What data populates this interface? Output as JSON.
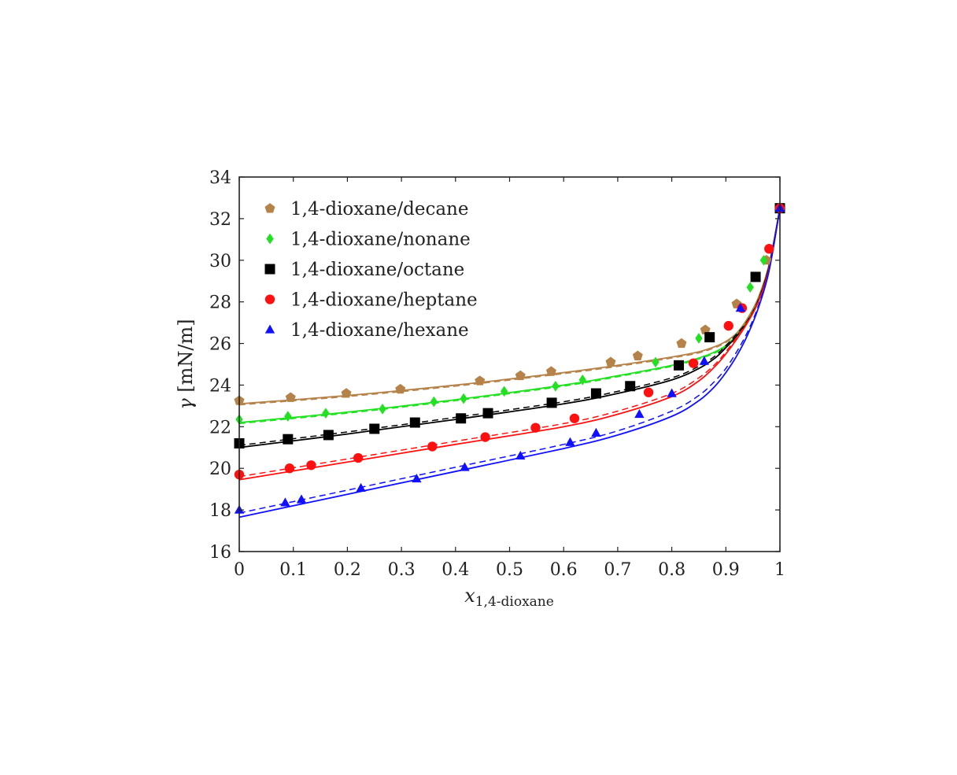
{
  "chart_data": {
    "type": "scatter",
    "title": "",
    "xlabel": {
      "base": "x",
      "sub": "1,4-dioxane"
    },
    "ylabel": {
      "base": "γ",
      "unit": " [mN/m]"
    },
    "xlim": [
      0,
      1
    ],
    "ylim": [
      16,
      34
    ],
    "xticks": [
      0,
      0.1,
      0.2,
      0.3,
      0.4,
      0.5,
      0.6,
      0.7,
      0.8,
      0.9,
      1
    ],
    "xtick_labels": [
      "0",
      "0.1",
      "0.2",
      "0.3",
      "0.4",
      "0.5",
      "0.6",
      "0.7",
      "0.8",
      "0.9",
      "1"
    ],
    "yticks": [
      16,
      18,
      20,
      22,
      24,
      26,
      28,
      30,
      32,
      34
    ],
    "ytick_labels": [
      "16",
      "18",
      "20",
      "22",
      "24",
      "26",
      "28",
      "30",
      "32",
      "34"
    ],
    "grid": false,
    "legend_position": "top-left",
    "series": [
      {
        "name": "1,4-dioxane/decane",
        "marker": "pentagon",
        "color": "#b5834a",
        "points": [
          [
            0,
            23.25
          ],
          [
            0.095,
            23.4
          ],
          [
            0.198,
            23.6
          ],
          [
            0.298,
            23.8
          ],
          [
            0.445,
            24.2
          ],
          [
            0.52,
            24.45
          ],
          [
            0.577,
            24.65
          ],
          [
            0.687,
            25.1
          ],
          [
            0.737,
            25.4
          ],
          [
            0.818,
            26.0
          ],
          [
            0.862,
            26.65
          ],
          [
            0.92,
            27.9
          ],
          [
            0.975,
            30.0
          ],
          [
            1.0,
            32.5
          ]
        ],
        "line_solid": [
          [
            0,
            23.1
          ],
          [
            0.2,
            23.5
          ],
          [
            0.4,
            24.0
          ],
          [
            0.6,
            24.6
          ],
          [
            0.7,
            24.95
          ],
          [
            0.8,
            25.35
          ],
          [
            0.85,
            25.6
          ],
          [
            0.88,
            25.85
          ],
          [
            0.9,
            26.1
          ],
          [
            0.92,
            26.5
          ],
          [
            0.94,
            27.2
          ],
          [
            0.96,
            28.2
          ],
          [
            0.98,
            29.8
          ],
          [
            1.0,
            32.5
          ]
        ],
        "line_dashed": [
          [
            0,
            23.05
          ],
          [
            0.2,
            23.45
          ],
          [
            0.4,
            23.95
          ],
          [
            0.6,
            24.55
          ],
          [
            0.7,
            24.9
          ],
          [
            0.8,
            25.3
          ],
          [
            0.85,
            25.55
          ],
          [
            0.88,
            25.8
          ],
          [
            0.9,
            26.05
          ],
          [
            0.92,
            26.45
          ],
          [
            0.94,
            27.15
          ],
          [
            0.96,
            28.15
          ],
          [
            0.98,
            29.75
          ],
          [
            1.0,
            32.5
          ]
        ]
      },
      {
        "name": "1,4-dioxane/nonane",
        "marker": "diamond",
        "color": "#22e022",
        "points": [
          [
            0,
            22.35
          ],
          [
            0.09,
            22.5
          ],
          [
            0.16,
            22.65
          ],
          [
            0.265,
            22.85
          ],
          [
            0.36,
            23.2
          ],
          [
            0.415,
            23.35
          ],
          [
            0.49,
            23.7
          ],
          [
            0.585,
            23.95
          ],
          [
            0.635,
            24.25
          ],
          [
            0.77,
            25.1
          ],
          [
            0.85,
            26.25
          ],
          [
            0.945,
            28.7
          ],
          [
            0.97,
            30.0
          ],
          [
            1.0,
            32.5
          ]
        ],
        "line_solid": [
          [
            0,
            22.2
          ],
          [
            0.2,
            22.7
          ],
          [
            0.4,
            23.3
          ],
          [
            0.6,
            24.0
          ],
          [
            0.7,
            24.45
          ],
          [
            0.8,
            24.95
          ],
          [
            0.85,
            25.3
          ],
          [
            0.88,
            25.6
          ],
          [
            0.9,
            25.9
          ],
          [
            0.92,
            26.4
          ],
          [
            0.94,
            27.1
          ],
          [
            0.96,
            28.1
          ],
          [
            0.98,
            29.7
          ],
          [
            1.0,
            32.5
          ]
        ],
        "line_dashed": [
          [
            0,
            22.15
          ],
          [
            0.2,
            22.65
          ],
          [
            0.4,
            23.25
          ],
          [
            0.6,
            23.95
          ],
          [
            0.7,
            24.4
          ],
          [
            0.8,
            24.9
          ],
          [
            0.85,
            25.25
          ],
          [
            0.88,
            25.55
          ],
          [
            0.9,
            25.85
          ],
          [
            0.92,
            26.35
          ],
          [
            0.94,
            27.05
          ],
          [
            0.96,
            28.05
          ],
          [
            0.98,
            29.65
          ],
          [
            1.0,
            32.5
          ]
        ]
      },
      {
        "name": "1,4-dioxane/octane",
        "marker": "square",
        "color": "#000000",
        "points": [
          [
            0,
            21.2
          ],
          [
            0.09,
            21.4
          ],
          [
            0.165,
            21.6
          ],
          [
            0.25,
            21.9
          ],
          [
            0.325,
            22.2
          ],
          [
            0.41,
            22.4
          ],
          [
            0.46,
            22.65
          ],
          [
            0.578,
            23.15
          ],
          [
            0.66,
            23.6
          ],
          [
            0.723,
            23.95
          ],
          [
            0.813,
            24.95
          ],
          [
            0.87,
            26.3
          ],
          [
            0.955,
            29.2
          ],
          [
            1.0,
            32.5
          ]
        ],
        "line_solid": [
          [
            0,
            21.0
          ],
          [
            0.2,
            21.65
          ],
          [
            0.4,
            22.35
          ],
          [
            0.6,
            23.1
          ],
          [
            0.7,
            23.6
          ],
          [
            0.8,
            24.25
          ],
          [
            0.85,
            24.8
          ],
          [
            0.88,
            25.3
          ],
          [
            0.9,
            25.8
          ],
          [
            0.92,
            26.35
          ],
          [
            0.94,
            27.05
          ],
          [
            0.96,
            28.05
          ],
          [
            0.98,
            29.7
          ],
          [
            1.0,
            32.5
          ]
        ],
        "line_dashed": [
          [
            0,
            21.1
          ],
          [
            0.2,
            21.75
          ],
          [
            0.4,
            22.45
          ],
          [
            0.6,
            23.2
          ],
          [
            0.7,
            23.7
          ],
          [
            0.8,
            24.35
          ],
          [
            0.85,
            24.9
          ],
          [
            0.88,
            25.4
          ],
          [
            0.9,
            25.9
          ],
          [
            0.92,
            26.45
          ],
          [
            0.94,
            27.1
          ],
          [
            0.96,
            28.1
          ],
          [
            0.98,
            29.75
          ],
          [
            1.0,
            32.5
          ]
        ]
      },
      {
        "name": "1,4-dioxane/heptane",
        "marker": "circle",
        "color": "#ff1010",
        "points": [
          [
            0,
            19.7
          ],
          [
            0.093,
            20.0
          ],
          [
            0.133,
            20.15
          ],
          [
            0.22,
            20.5
          ],
          [
            0.357,
            21.05
          ],
          [
            0.455,
            21.5
          ],
          [
            0.548,
            21.95
          ],
          [
            0.62,
            22.4
          ],
          [
            0.757,
            23.65
          ],
          [
            0.84,
            25.05
          ],
          [
            0.905,
            26.85
          ],
          [
            0.93,
            27.7
          ],
          [
            0.98,
            30.55
          ],
          [
            1.0,
            32.5
          ]
        ],
        "line_solid": [
          [
            0,
            19.45
          ],
          [
            0.2,
            20.3
          ],
          [
            0.4,
            21.15
          ],
          [
            0.6,
            22.0
          ],
          [
            0.7,
            22.6
          ],
          [
            0.8,
            23.45
          ],
          [
            0.85,
            24.2
          ],
          [
            0.88,
            24.9
          ],
          [
            0.9,
            25.5
          ],
          [
            0.92,
            26.2
          ],
          [
            0.94,
            27.0
          ],
          [
            0.96,
            28.0
          ],
          [
            0.98,
            29.6
          ],
          [
            1.0,
            32.5
          ]
        ],
        "line_dashed": [
          [
            0,
            19.6
          ],
          [
            0.2,
            20.45
          ],
          [
            0.4,
            21.3
          ],
          [
            0.6,
            22.15
          ],
          [
            0.7,
            22.75
          ],
          [
            0.8,
            23.6
          ],
          [
            0.85,
            24.35
          ],
          [
            0.88,
            25.0
          ],
          [
            0.9,
            25.6
          ],
          [
            0.92,
            26.3
          ],
          [
            0.94,
            27.05
          ],
          [
            0.96,
            28.05
          ],
          [
            0.98,
            29.65
          ],
          [
            1.0,
            32.5
          ]
        ]
      },
      {
        "name": "1,4-dioxane/hexane",
        "marker": "triangle",
        "color": "#1010ff",
        "points": [
          [
            0,
            18.0
          ],
          [
            0.085,
            18.35
          ],
          [
            0.115,
            18.5
          ],
          [
            0.225,
            19.05
          ],
          [
            0.328,
            19.5
          ],
          [
            0.417,
            20.05
          ],
          [
            0.52,
            20.6
          ],
          [
            0.612,
            21.25
          ],
          [
            0.66,
            21.7
          ],
          [
            0.74,
            22.6
          ],
          [
            0.8,
            23.6
          ],
          [
            0.86,
            25.15
          ],
          [
            0.927,
            27.7
          ],
          [
            1.0,
            32.5
          ]
        ],
        "line_solid": [
          [
            0,
            17.65
          ],
          [
            0.2,
            18.75
          ],
          [
            0.4,
            19.85
          ],
          [
            0.6,
            20.95
          ],
          [
            0.7,
            21.6
          ],
          [
            0.8,
            22.5
          ],
          [
            0.85,
            23.25
          ],
          [
            0.88,
            23.95
          ],
          [
            0.9,
            24.6
          ],
          [
            0.92,
            25.4
          ],
          [
            0.94,
            26.4
          ],
          [
            0.96,
            27.7
          ],
          [
            0.98,
            29.5
          ],
          [
            1.0,
            32.5
          ]
        ],
        "line_dashed": [
          [
            0,
            17.85
          ],
          [
            0.2,
            18.95
          ],
          [
            0.4,
            20.05
          ],
          [
            0.6,
            21.15
          ],
          [
            0.7,
            21.8
          ],
          [
            0.8,
            22.75
          ],
          [
            0.85,
            23.5
          ],
          [
            0.88,
            24.2
          ],
          [
            0.9,
            24.8
          ],
          [
            0.92,
            25.6
          ],
          [
            0.94,
            26.55
          ],
          [
            0.96,
            27.8
          ],
          [
            0.98,
            29.55
          ],
          [
            1.0,
            32.5
          ]
        ]
      }
    ]
  }
}
